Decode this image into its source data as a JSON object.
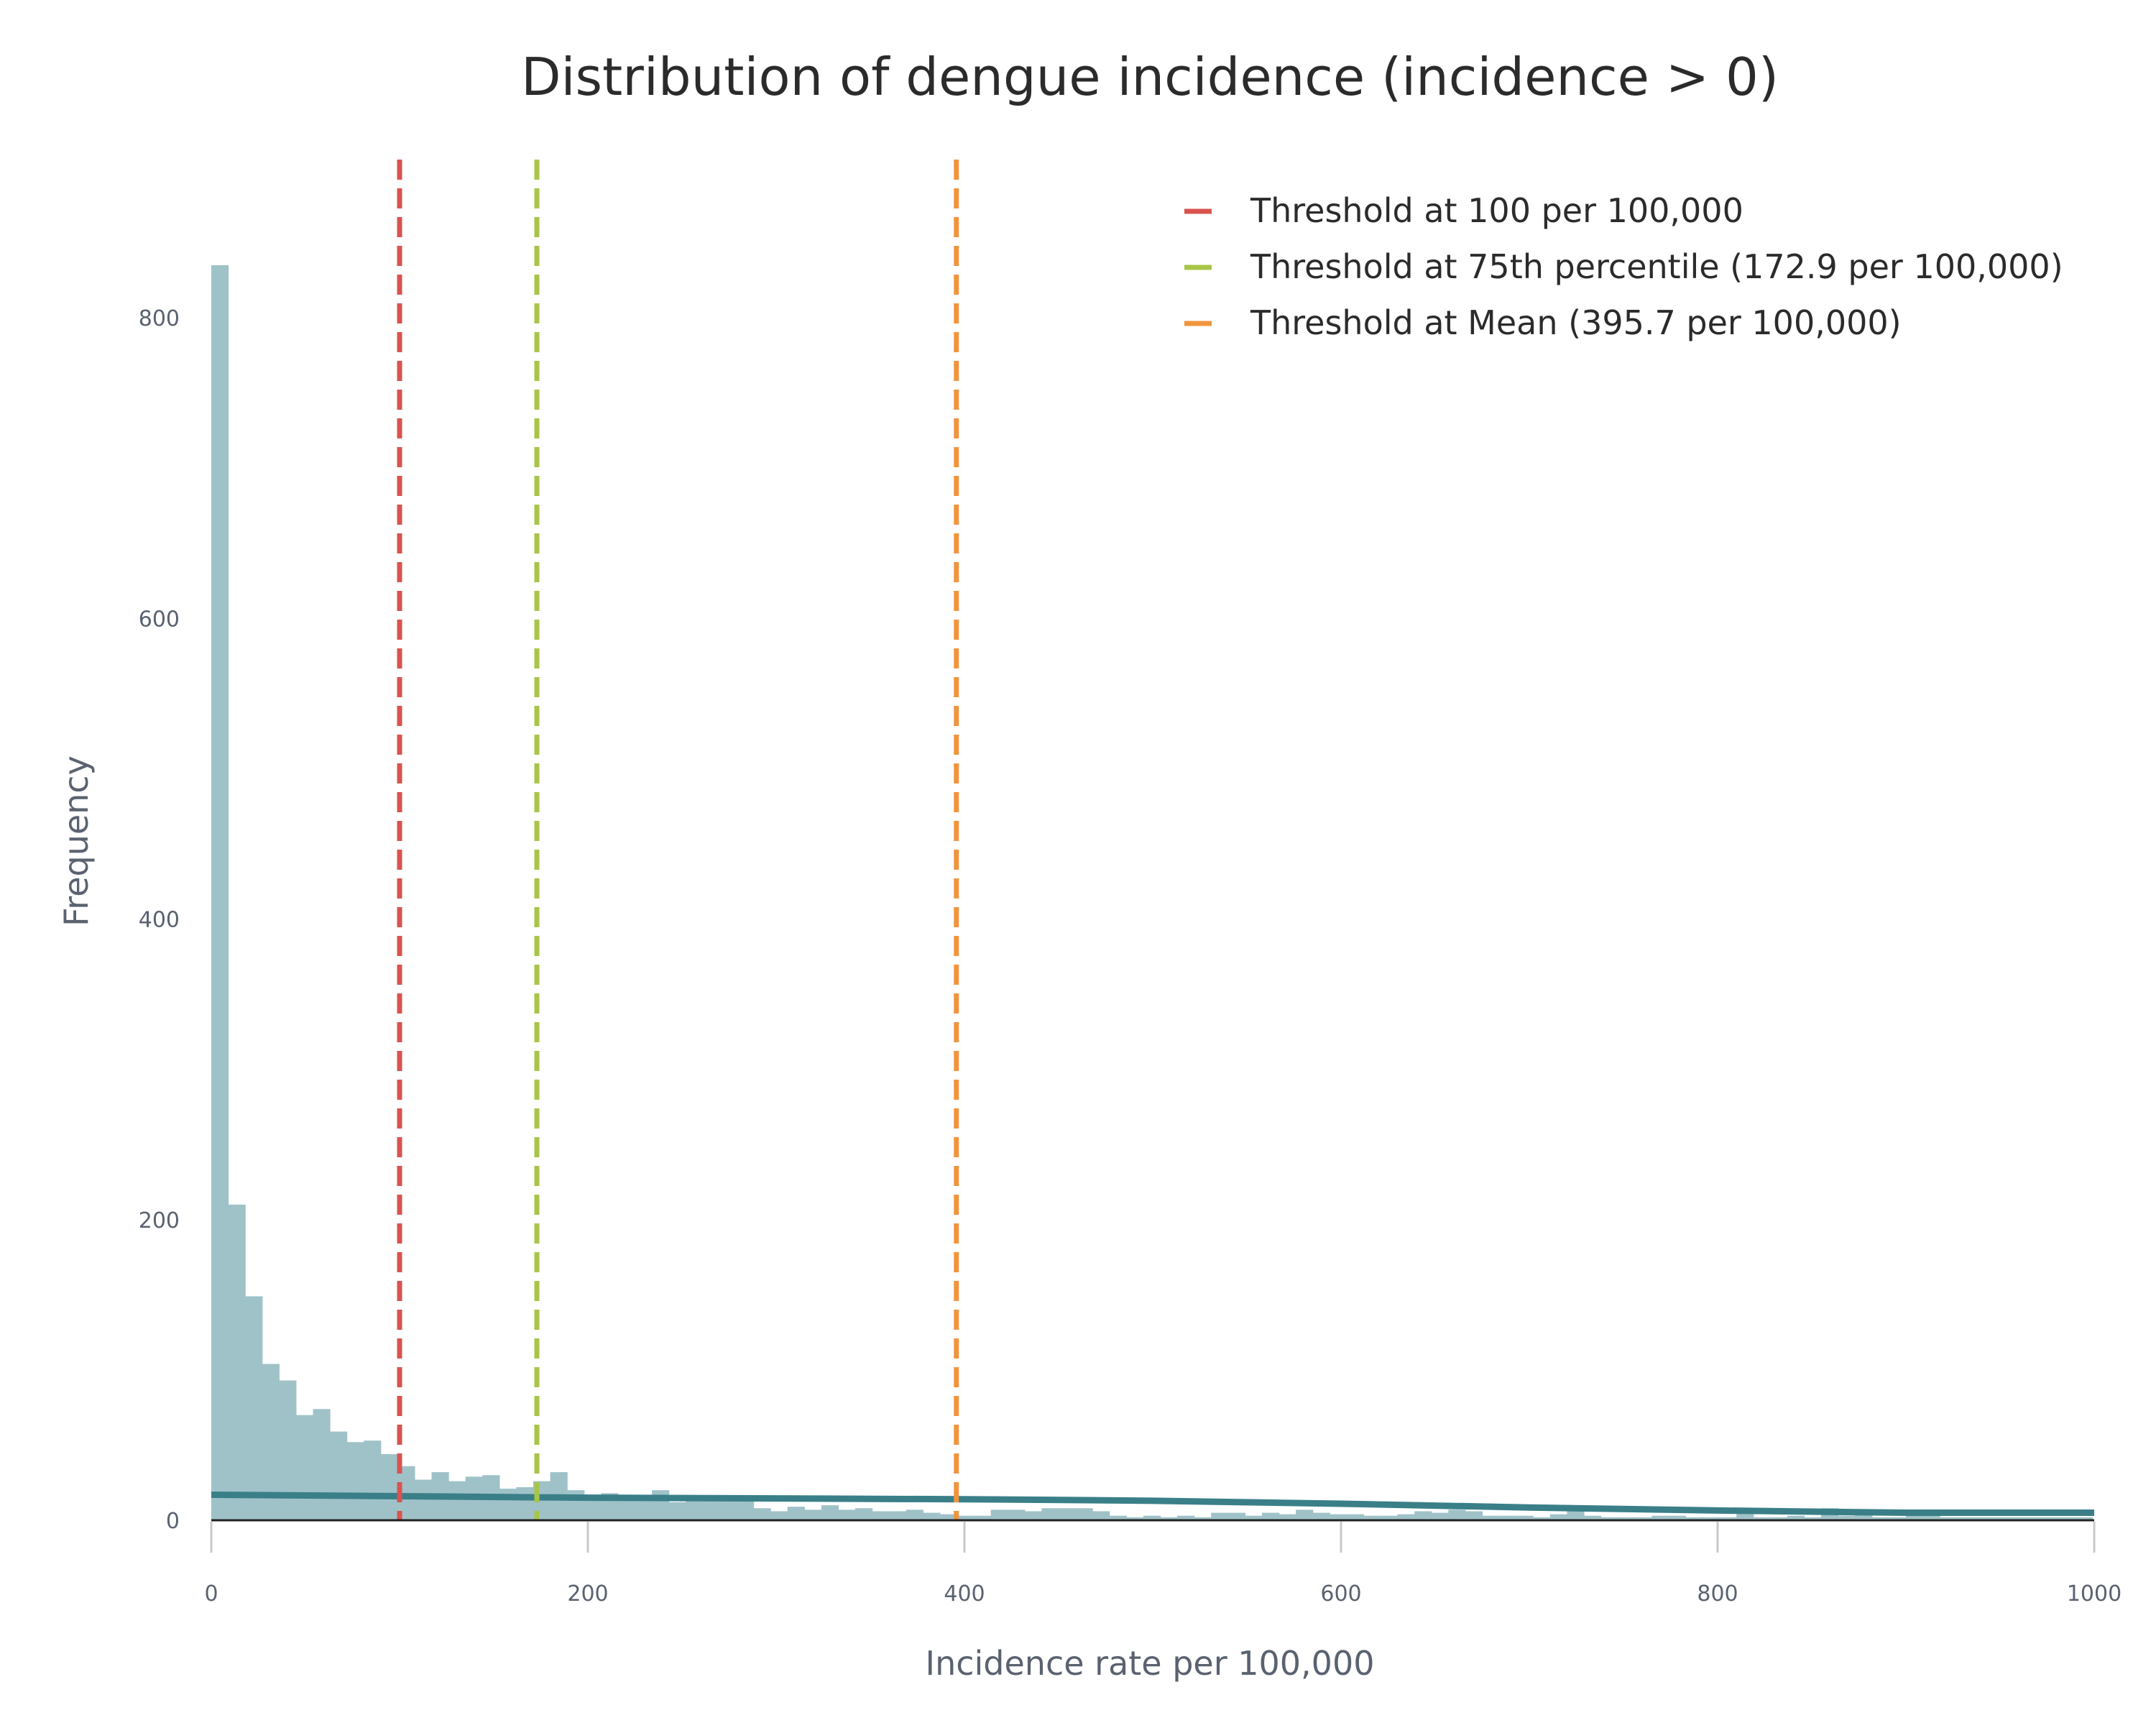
{
  "chart_data": {
    "type": "bar",
    "title": "Distribution of dengue incidence (incidence > 0)",
    "xlabel": "Incidence rate per 100,000",
    "ylabel": "Frequency",
    "xlim": [
      0,
      1000
    ],
    "ylim": [
      0,
      900
    ],
    "x_ticks": [
      0,
      200,
      400,
      600,
      800,
      1000
    ],
    "y_ticks": [
      0,
      200,
      400,
      600,
      800
    ],
    "grid": false,
    "legend_position": "top-right",
    "histogram": {
      "bin_width": 9,
      "bin_starts": [
        0,
        9,
        18,
        27,
        36,
        45,
        54,
        63,
        72,
        81,
        90,
        99,
        108,
        117,
        126,
        135,
        144,
        153,
        162,
        171,
        180,
        189,
        198,
        207,
        216,
        225,
        234,
        243,
        252,
        261,
        270,
        279,
        288,
        297,
        306,
        315,
        324,
        333,
        342,
        351,
        360,
        369,
        378,
        387,
        396,
        405,
        414,
        423,
        432,
        441,
        450,
        459,
        468,
        477,
        486,
        495,
        504,
        513,
        522,
        531,
        540,
        549,
        558,
        567,
        576,
        585,
        594,
        603,
        612,
        621,
        630,
        639,
        648,
        657,
        666,
        675,
        684,
        693,
        702,
        711,
        720,
        729,
        738,
        747,
        756,
        765,
        774,
        783,
        792,
        801,
        810,
        819,
        828,
        837,
        846,
        855,
        864,
        873,
        882,
        891,
        900,
        909,
        918,
        927,
        936,
        945,
        954,
        963,
        972,
        981,
        990
      ],
      "counts": [
        835,
        210,
        149,
        104,
        93,
        70,
        74,
        59,
        52,
        53,
        44,
        36,
        27,
        32,
        26,
        29,
        30,
        21,
        22,
        26,
        32,
        20,
        17,
        18,
        17,
        16,
        20,
        12,
        14,
        14,
        14,
        14,
        8,
        6,
        9,
        7,
        10,
        7,
        8,
        6,
        6,
        7,
        5,
        4,
        3,
        3,
        7,
        7,
        6,
        8,
        8,
        8,
        6,
        3,
        2,
        3,
        2,
        3,
        2,
        5,
        5,
        3,
        5,
        4,
        7,
        5,
        4,
        4,
        3,
        3,
        4,
        6,
        5,
        7,
        6,
        3,
        3,
        3,
        2,
        4,
        6,
        3,
        2,
        2,
        2,
        3,
        3,
        2,
        2,
        2,
        8,
        2,
        2,
        3,
        2,
        8,
        3,
        4,
        2,
        2,
        3,
        3,
        2,
        2,
        2,
        2,
        2,
        2,
        2,
        2,
        2
      ],
      "color": "#9fc2c8"
    },
    "density_curve": {
      "x": [
        0,
        100,
        200,
        300,
        400,
        500,
        600,
        700,
        800,
        900,
        1000
      ],
      "y": [
        17,
        16,
        15,
        14.5,
        14,
        13,
        11,
        8.5,
        6.5,
        5,
        5
      ],
      "color": "#3a7f88"
    },
    "series": [
      {
        "name": "Threshold at 100 per 100,000",
        "x": 100,
        "color": "#d9534f"
      },
      {
        "name": "Threshold at 75th percentile (172.9 per 100,000)",
        "x": 172.9,
        "color": "#a8c548"
      },
      {
        "name": "Threshold at Mean (395.7 per 100,000)",
        "x": 395.7,
        "color": "#f0953e"
      }
    ]
  }
}
